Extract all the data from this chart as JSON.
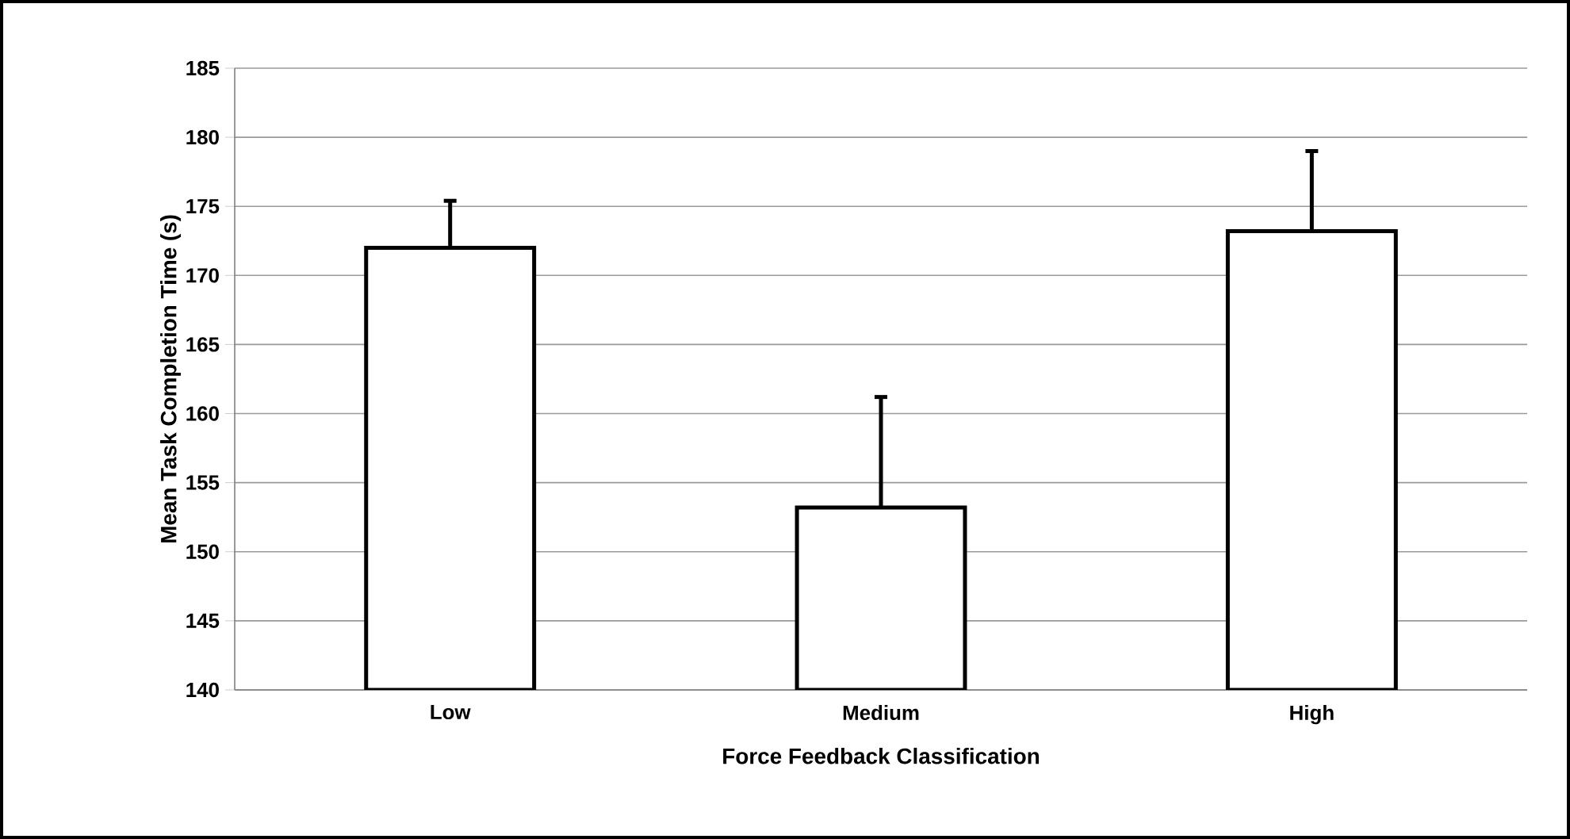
{
  "chart_data": {
    "type": "bar",
    "xlabel": "Force Feedback Classification",
    "ylabel": "Mean Task Completion Time (s)",
    "categories": [
      "Low",
      "Medium",
      "High"
    ],
    "values": [
      172,
      153.2,
      173.2
    ],
    "errors": [
      [
        172,
        175.4
      ],
      [
        153.2,
        161.2
      ],
      [
        173.2,
        179
      ]
    ],
    "color": "#ffffff",
    "ylim": [
      140,
      185
    ],
    "yticks": [
      140,
      145,
      150,
      155,
      160,
      165,
      170,
      175,
      180,
      185
    ],
    "grid": "y"
  }
}
